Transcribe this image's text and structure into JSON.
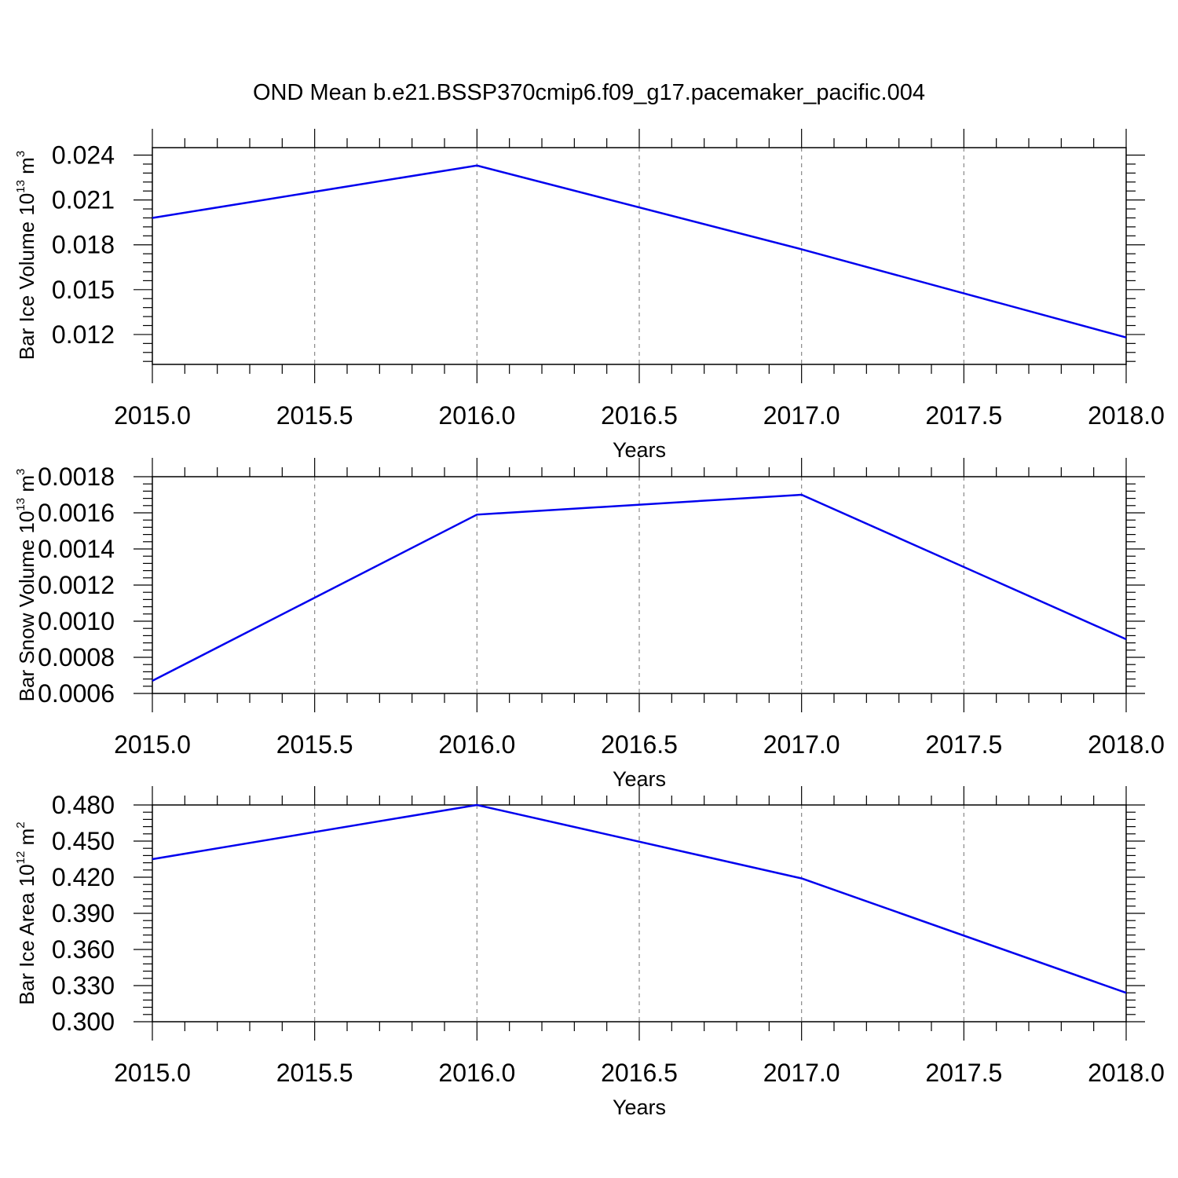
{
  "figure": {
    "title": "OND Mean b.e21.BSSP370cmip6.f09_g17.pacemaker_pacific.004",
    "line_color": "#0000ee"
  },
  "chart_data": [
    {
      "type": "line",
      "ylabel_text": "Bar Ice Volume 10",
      "ylabel_exp": "13",
      "ylabel_unit": " m",
      "ylabel_unit_exp": "3",
      "xlabel": "Years",
      "x": [
        2015,
        2016,
        2017,
        2018
      ],
      "y": [
        0.0198,
        0.0233,
        0.0177,
        0.0118
      ],
      "xlim": [
        2015,
        2018
      ],
      "ylim": [
        0.01,
        0.0245
      ],
      "yticks": [
        "0.012",
        "0.015",
        "0.018",
        "0.021",
        "0.024"
      ],
      "xticks": [
        "2015.0",
        "2015.5",
        "2016.0",
        "2016.5",
        "2017.0",
        "2017.5",
        "2018.0"
      ],
      "grid": "vertical dashed"
    },
    {
      "type": "line",
      "ylabel_text": "Bar Snow Volume 10",
      "ylabel_exp": "13",
      "ylabel_unit": " m",
      "ylabel_unit_exp": "3",
      "xlabel": "Years",
      "x": [
        2015,
        2016,
        2017,
        2018
      ],
      "y": [
        0.00067,
        0.00159,
        0.0017,
        0.0009
      ],
      "xlim": [
        2015,
        2018
      ],
      "ylim": [
        0.0006,
        0.0018
      ],
      "yticks": [
        "0.0006",
        "0.0008",
        "0.0010",
        "0.0012",
        "0.0014",
        "0.0016",
        "0.0018"
      ],
      "xticks": [
        "2015.0",
        "2015.5",
        "2016.0",
        "2016.5",
        "2017.0",
        "2017.5",
        "2018.0"
      ],
      "grid": "vertical dashed"
    },
    {
      "type": "line",
      "ylabel_text": "Bar Ice Area 10",
      "ylabel_exp": "12",
      "ylabel_unit": " m",
      "ylabel_unit_exp": "2",
      "xlabel": "Years",
      "x": [
        2015,
        2016,
        2017,
        2018
      ],
      "y": [
        0.435,
        0.48,
        0.419,
        0.324
      ],
      "xlim": [
        2015,
        2018
      ],
      "ylim": [
        0.3,
        0.48
      ],
      "yticks": [
        "0.300",
        "0.330",
        "0.360",
        "0.390",
        "0.420",
        "0.450",
        "0.480"
      ],
      "xticks": [
        "2015.0",
        "2015.5",
        "2016.0",
        "2016.5",
        "2017.0",
        "2017.5",
        "2018.0"
      ],
      "grid": "vertical dashed"
    }
  ]
}
